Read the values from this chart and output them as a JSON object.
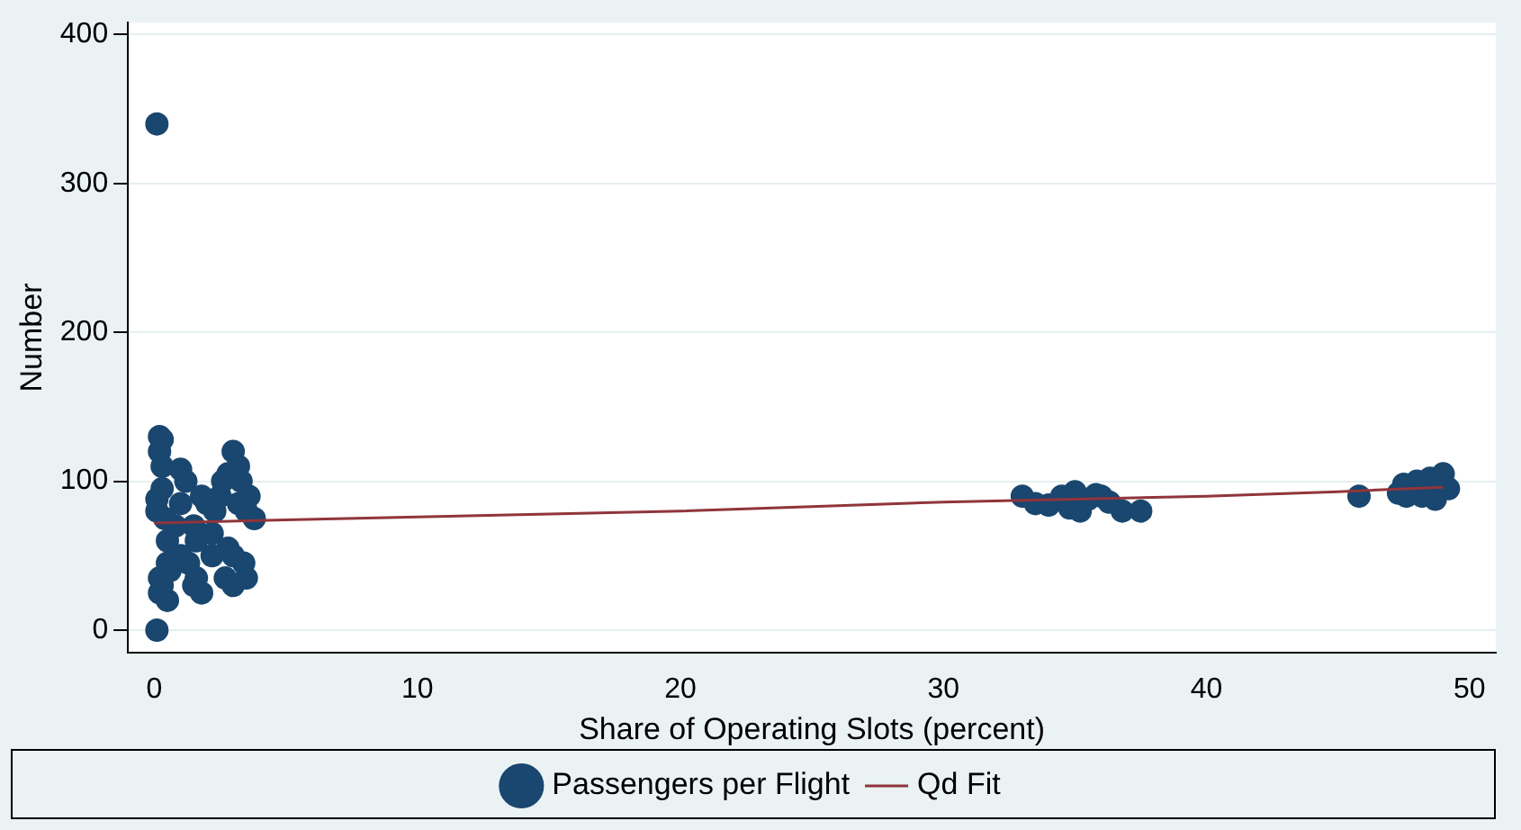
{
  "chart_data": {
    "type": "scatter",
    "xlabel": "Share of Operating Slots (percent)",
    "ylabel": "Number",
    "xlim": [
      -1,
      51
    ],
    "ylim": [
      -15,
      408
    ],
    "xticks": [
      0,
      10,
      20,
      30,
      40,
      50
    ],
    "yticks": [
      0,
      100,
      200,
      300,
      400
    ],
    "grid": "y",
    "legend": "bottom",
    "marker": "circle",
    "series": [
      {
        "name": "Passengers per Flight",
        "color": "#1a476f",
        "x": [
          0.1,
          0.1,
          0.2,
          0.3,
          0.2,
          0.3,
          0.1,
          0.1,
          0.2,
          0.3,
          0.2,
          0.5,
          0.5,
          0.5,
          0.6,
          1.0,
          1.2,
          1.0,
          1.5,
          1.0,
          1.3,
          1.5,
          1.8,
          1.6,
          2.2,
          2.0,
          2.3,
          2.5,
          2.6,
          2.8,
          3.0,
          3.2,
          3.3,
          3.2,
          3.5,
          3.8,
          2.8,
          3.0,
          3.4,
          2.7,
          3.0,
          3.5,
          1.8,
          2.2,
          0.8,
          0.4,
          0.3,
          1.6,
          3.6,
          33,
          33.5,
          34,
          34.5,
          35,
          35.2,
          35.5,
          36,
          36.3,
          36.8,
          37.5,
          34.8,
          35.8,
          45.8,
          47.3,
          47.5,
          48,
          48.2,
          48.5,
          48.7,
          49,
          49.2,
          47.6
        ],
        "values": [
          340,
          0,
          130,
          128,
          120,
          110,
          88,
          80,
          35,
          30,
          25,
          20,
          60,
          45,
          40,
          108,
          100,
          85,
          70,
          50,
          45,
          30,
          25,
          35,
          65,
          85,
          80,
          90,
          100,
          105,
          120,
          110,
          100,
          85,
          80,
          75,
          55,
          50,
          45,
          35,
          30,
          35,
          90,
          50,
          70,
          75,
          95,
          60,
          90,
          90,
          85,
          84,
          90,
          93,
          80,
          88,
          90,
          86,
          80,
          80,
          82,
          91,
          90,
          92,
          98,
          100,
          90,
          102,
          88,
          105,
          95,
          90
        ]
      },
      {
        "name": "Qd Fit",
        "color": "#90353b",
        "type": "line",
        "marker": "none",
        "x": [
          0,
          5,
          10,
          15,
          20,
          25,
          30,
          35,
          40,
          45,
          49
        ],
        "values": [
          72,
          74,
          76,
          78,
          80,
          83,
          86,
          88,
          90,
          93,
          96
        ]
      }
    ]
  }
}
